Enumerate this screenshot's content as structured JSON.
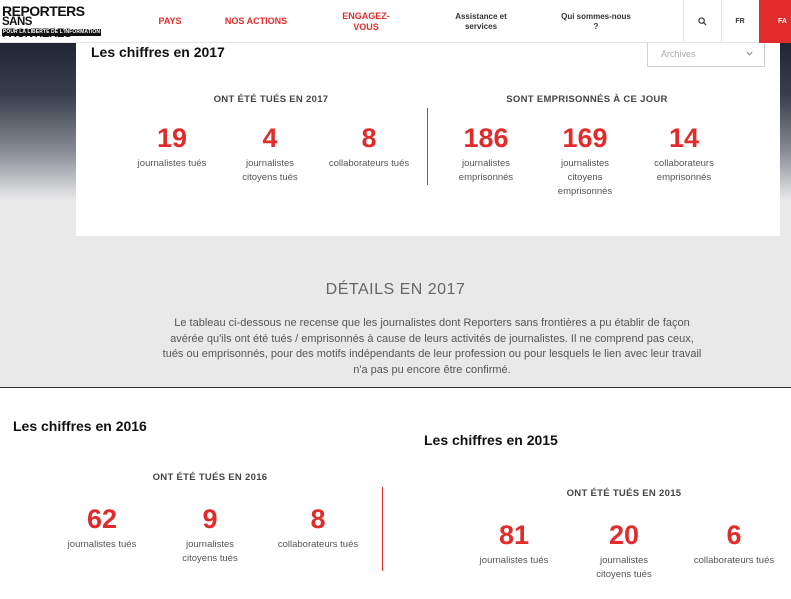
{
  "nav": {
    "logo_line1": "REPORTERS",
    "logo_line2": "SANS FRONTIERES",
    "logo_tagline": "POUR LA LIBERTE DE L'INFORMATION",
    "items": [
      {
        "label": "PAYS"
      },
      {
        "label": "NOS ACTIONS"
      },
      {
        "label": "ENGAGEZ-\nVOUS"
      },
      {
        "label": "Assistance et\nservices"
      },
      {
        "label": "Qui sommes-nous\n?"
      }
    ],
    "search_icon": "search-icon",
    "lang": "FR",
    "donate_label": "FA"
  },
  "y2017": {
    "title": "Les chiffres en 2017",
    "archives_label": "Archives",
    "killed": {
      "heading": "ONT ÉTÉ TUÉS EN 2017",
      "stats": [
        {
          "value": "19",
          "label": "journalistes tués"
        },
        {
          "value": "4",
          "label": "journalistes\ncitoyens tués"
        },
        {
          "value": "8",
          "label": "collaborateurs tués"
        }
      ]
    },
    "imprisoned": {
      "heading": "SONT EMPRISONNÉS À CE JOUR",
      "stats": [
        {
          "value": "186",
          "label": "journalistes\nemprisonnés"
        },
        {
          "value": "169",
          "label": "journalistes\ncitoyens\nemprisonnés"
        },
        {
          "value": "14",
          "label": "collaborateurs\nemprisonnés"
        }
      ]
    }
  },
  "details": {
    "title": "DÉTAILS EN 2017",
    "text": "Le tableau ci-dessous ne recense que les journalistes dont Reporters sans frontières a pu établir de façon avérée qu'ils ont été tués / emprisonnés à cause de leurs activités de journalistes. Il ne comprend pas ceux, tués ou emprisonnés, pour des motifs indépendants de leur profession ou pour lesquels le lien avec leur travail n'a pas pu encore être confirmé."
  },
  "y2016": {
    "title": "Les chiffres en 2016",
    "heading": "ONT ÉTÉ TUÉS EN 2016",
    "stats": [
      {
        "value": "62",
        "label": "journalistes tués"
      },
      {
        "value": "9",
        "label": "journalistes\ncitoyens tués"
      },
      {
        "value": "8",
        "label": "collaborateurs tués"
      }
    ]
  },
  "y2015": {
    "title": "Les chiffres en 2015",
    "heading": "ONT ÉTÉ TUÉS EN 2015",
    "stats": [
      {
        "value": "81",
        "label": "journalistes tués"
      },
      {
        "value": "20",
        "label": "journalistes\ncitoyens tués"
      },
      {
        "value": "6",
        "label": "collaborateurs tués"
      }
    ]
  },
  "colors": {
    "accent_red": "#e22b2b",
    "text_dark": "#333333",
    "background_gray": "#e9e9ea"
  }
}
